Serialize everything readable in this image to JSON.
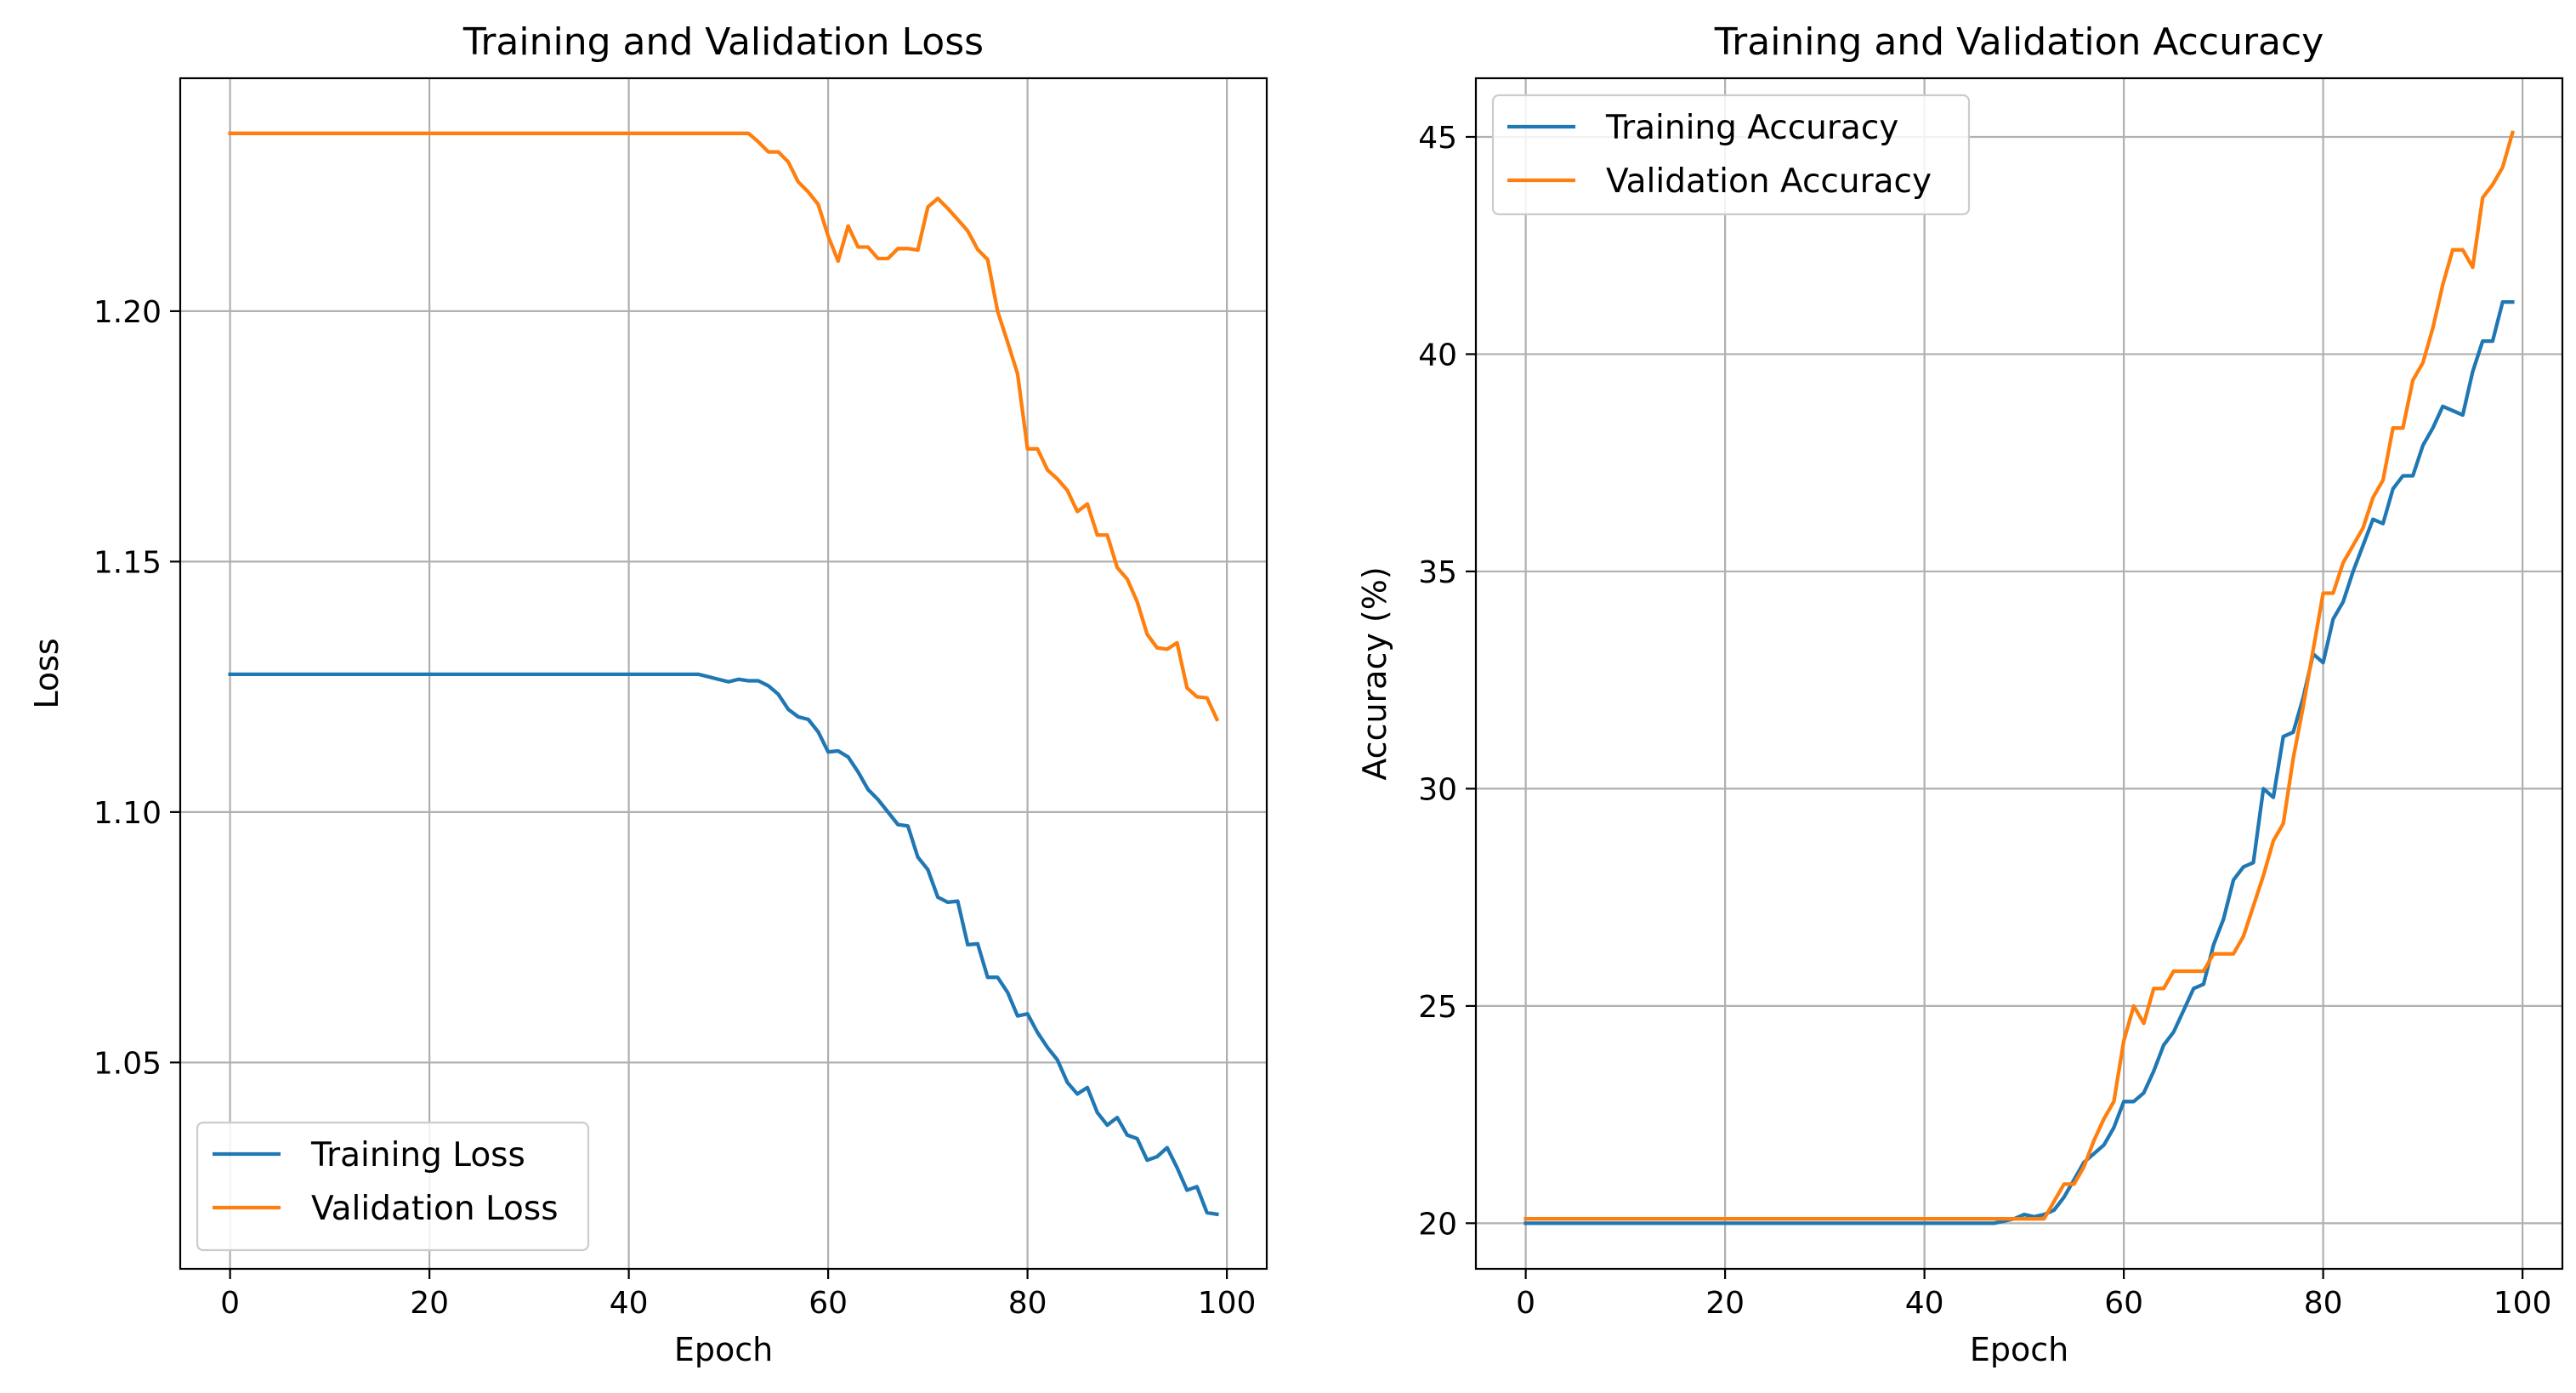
{
  "chart_data": [
    {
      "type": "line",
      "title": "Training and Validation Loss",
      "xlabel": "Epoch",
      "ylabel": "Loss",
      "xlim": [
        -5,
        104
      ],
      "ylim": [
        1.0088,
        1.2465
      ],
      "xticks": [
        0,
        20,
        40,
        60,
        80,
        100
      ],
      "yticks": [
        1.05,
        1.1,
        1.15,
        1.2
      ],
      "ytick_labels": [
        "1.05",
        "1.10",
        "1.15",
        "1.20"
      ],
      "grid": true,
      "legend": "lower-left",
      "series": [
        {
          "name": "Training Loss",
          "color": "#1f77b4",
          "values": [
            1.1275,
            1.1275,
            1.1275,
            1.1275,
            1.1275,
            1.1275,
            1.1275,
            1.1275,
            1.1275,
            1.1275,
            1.1275,
            1.1275,
            1.1275,
            1.1275,
            1.1275,
            1.1275,
            1.1275,
            1.1275,
            1.1275,
            1.1275,
            1.1275,
            1.1275,
            1.1275,
            1.1275,
            1.1275,
            1.1275,
            1.1275,
            1.1275,
            1.1275,
            1.1275,
            1.1275,
            1.1275,
            1.1275,
            1.1275,
            1.1275,
            1.1275,
            1.1275,
            1.1275,
            1.1275,
            1.1275,
            1.1275,
            1.1275,
            1.1275,
            1.1275,
            1.1275,
            1.1275,
            1.1275,
            1.1275,
            1.127,
            1.1265,
            1.126,
            1.1265,
            1.1262,
            1.1262,
            1.1252,
            1.1235,
            1.1205,
            1.119,
            1.1185,
            1.116,
            1.112,
            1.1122,
            1.111,
            1.108,
            1.1045,
            1.1025,
            1.1,
            1.0975,
            1.0972,
            1.091,
            1.0885,
            1.083,
            1.082,
            1.0822,
            1.0735,
            1.0737,
            1.067,
            1.067,
            1.064,
            1.0593,
            1.0597,
            1.056,
            1.053,
            1.0505,
            1.046,
            1.0437,
            1.045,
            1.04,
            1.0375,
            1.039,
            1.0355,
            1.0348,
            1.0305,
            1.0312,
            1.033,
            1.029,
            1.0245,
            1.0252,
            1.02,
            1.0197
          ]
        },
        {
          "name": "Validation Loss",
          "color": "#ff7f0e",
          "values": [
            1.2355,
            1.2355,
            1.2355,
            1.2355,
            1.2355,
            1.2355,
            1.2355,
            1.2355,
            1.2355,
            1.2355,
            1.2355,
            1.2355,
            1.2355,
            1.2355,
            1.2355,
            1.2355,
            1.2355,
            1.2355,
            1.2355,
            1.2355,
            1.2355,
            1.2355,
            1.2355,
            1.2355,
            1.2355,
            1.2355,
            1.2355,
            1.2355,
            1.2355,
            1.2355,
            1.2355,
            1.2355,
            1.2355,
            1.2355,
            1.2355,
            1.2355,
            1.2355,
            1.2355,
            1.2355,
            1.2355,
            1.2355,
            1.2355,
            1.2355,
            1.2355,
            1.2355,
            1.2355,
            1.2355,
            1.2355,
            1.2355,
            1.2355,
            1.2355,
            1.2355,
            1.2355,
            1.2338,
            1.2318,
            1.2318,
            1.2298,
            1.2258,
            1.2238,
            1.2213,
            1.215,
            1.21,
            1.217,
            1.2128,
            1.2128,
            1.2105,
            1.2105,
            1.2125,
            1.2125,
            1.2122,
            1.2208,
            1.2225,
            1.2205,
            1.2183,
            1.216,
            1.2123,
            1.2103,
            1.2,
            1.1938,
            1.1875,
            1.1725,
            1.1725,
            1.1683,
            1.1665,
            1.1642,
            1.16,
            1.1615,
            1.1553,
            1.1553,
            1.1488,
            1.1465,
            1.142,
            1.1355,
            1.1328,
            1.1325,
            1.1338,
            1.1248,
            1.123,
            1.1228,
            1.1185
          ]
        }
      ]
    },
    {
      "type": "line",
      "title": "Training and Validation Accuracy",
      "xlabel": "Epoch",
      "ylabel": "Accuracy (%)",
      "xlim": [
        -5,
        104
      ],
      "ylim": [
        18.95,
        46.35
      ],
      "xticks": [
        0,
        20,
        40,
        60,
        80,
        100
      ],
      "yticks": [
        20,
        25,
        30,
        35,
        40,
        45
      ],
      "ytick_labels": [
        "20",
        "25",
        "30",
        "35",
        "40",
        "45"
      ],
      "grid": true,
      "legend": "upper-left",
      "series": [
        {
          "name": "Training Accuracy",
          "color": "#1f77b4",
          "values": [
            20.0,
            20.0,
            20.0,
            20.0,
            20.0,
            20.0,
            20.0,
            20.0,
            20.0,
            20.0,
            20.0,
            20.0,
            20.0,
            20.0,
            20.0,
            20.0,
            20.0,
            20.0,
            20.0,
            20.0,
            20.0,
            20.0,
            20.0,
            20.0,
            20.0,
            20.0,
            20.0,
            20.0,
            20.0,
            20.0,
            20.0,
            20.0,
            20.0,
            20.0,
            20.0,
            20.0,
            20.0,
            20.0,
            20.0,
            20.0,
            20.0,
            20.0,
            20.0,
            20.0,
            20.0,
            20.0,
            20.0,
            20.0,
            20.05,
            20.1,
            20.2,
            20.15,
            20.2,
            20.3,
            20.6,
            21.0,
            21.4,
            21.6,
            21.8,
            22.2,
            22.8,
            22.8,
            23.0,
            23.5,
            24.1,
            24.4,
            24.9,
            25.4,
            25.5,
            26.4,
            27.0,
            27.9,
            28.2,
            28.3,
            30.0,
            29.8,
            31.2,
            31.3,
            32.1,
            33.1,
            32.9,
            33.9,
            34.3,
            35.0,
            35.6,
            36.2,
            36.1,
            36.9,
            37.2,
            37.2,
            37.9,
            38.3,
            38.8,
            38.7,
            38.6,
            39.6,
            40.3,
            40.3,
            41.2,
            41.2
          ]
        },
        {
          "name": "Validation Accuracy",
          "color": "#ff7f0e",
          "values": [
            20.1,
            20.1,
            20.1,
            20.1,
            20.1,
            20.1,
            20.1,
            20.1,
            20.1,
            20.1,
            20.1,
            20.1,
            20.1,
            20.1,
            20.1,
            20.1,
            20.1,
            20.1,
            20.1,
            20.1,
            20.1,
            20.1,
            20.1,
            20.1,
            20.1,
            20.1,
            20.1,
            20.1,
            20.1,
            20.1,
            20.1,
            20.1,
            20.1,
            20.1,
            20.1,
            20.1,
            20.1,
            20.1,
            20.1,
            20.1,
            20.1,
            20.1,
            20.1,
            20.1,
            20.1,
            20.1,
            20.1,
            20.1,
            20.1,
            20.1,
            20.1,
            20.1,
            20.1,
            20.5,
            20.9,
            20.9,
            21.3,
            21.9,
            22.4,
            22.8,
            24.2,
            25.0,
            24.6,
            25.4,
            25.4,
            25.8,
            25.8,
            25.8,
            25.8,
            26.2,
            26.2,
            26.2,
            26.6,
            27.3,
            28.0,
            28.8,
            29.2,
            30.7,
            31.9,
            33.2,
            34.5,
            34.5,
            35.2,
            35.6,
            36.0,
            36.7,
            37.1,
            38.3,
            38.3,
            39.4,
            39.8,
            40.6,
            41.6,
            42.4,
            42.4,
            42.0,
            43.6,
            43.9,
            44.3,
            45.1
          ]
        }
      ]
    }
  ]
}
